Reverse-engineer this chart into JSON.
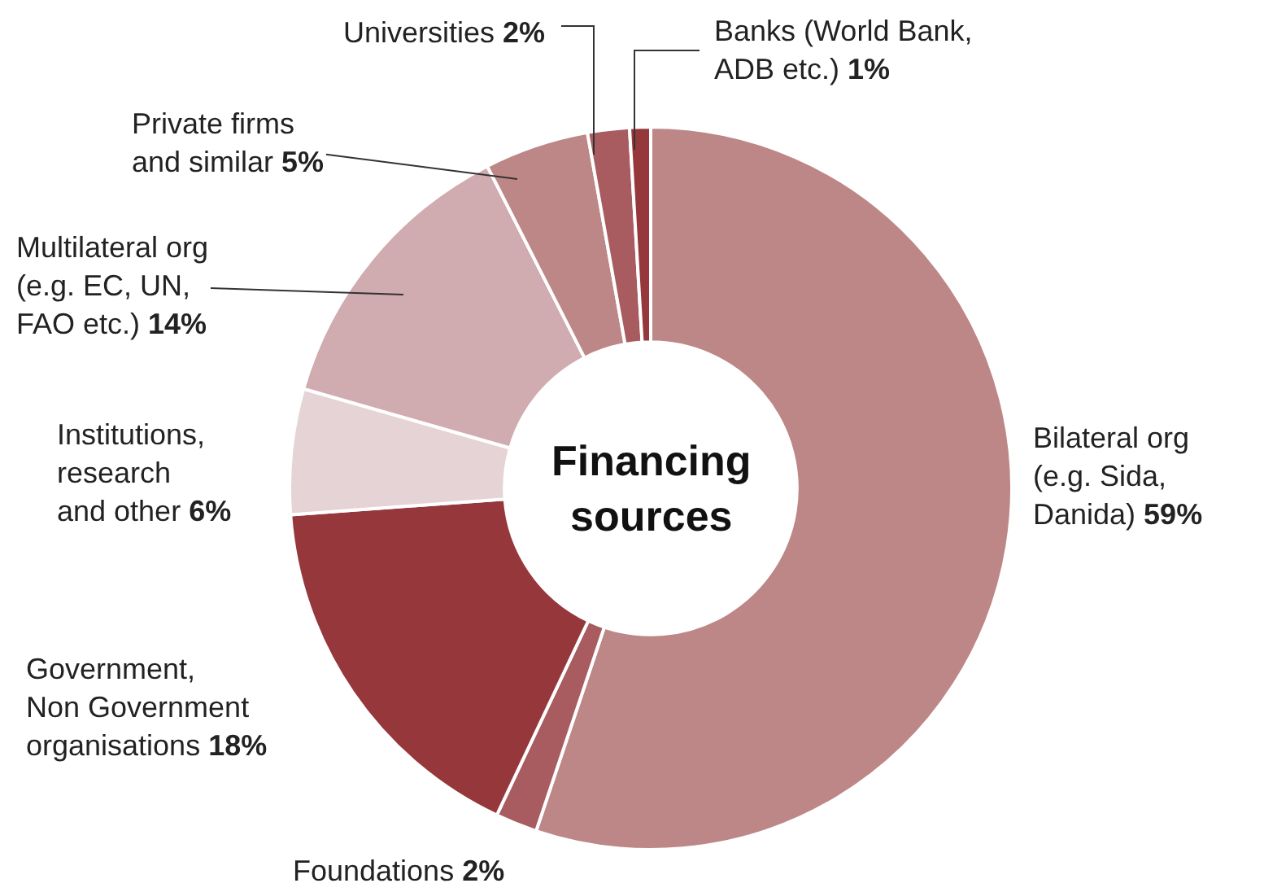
{
  "chart_data": {
    "type": "donut",
    "title": "Financing\nsources",
    "categories": [
      "Bilateral org\n(e.g. Sida,\nDanida)",
      "Foundations",
      "Government,\nNon Government\norganisations",
      "Institutions,\nresearch\nand other",
      "Multilateral org\n(e.g. EC, UN,\nFAO etc.)",
      "Private firms\nand similar",
      "Universities",
      "Banks (World Bank,\nADB etc.)"
    ],
    "values": [
      59,
      2,
      18,
      6,
      14,
      5,
      2,
      1
    ],
    "value_labels": [
      "59%",
      "2%",
      "18%",
      "6%",
      "14%",
      "5%",
      "2%",
      "1%"
    ],
    "colors": [
      "#bd8787",
      "#a85c60",
      "#96383b",
      "#e6d3d5",
      "#d0abaf",
      "#bd8787",
      "#a85c60",
      "#96383b"
    ],
    "legend": false
  }
}
